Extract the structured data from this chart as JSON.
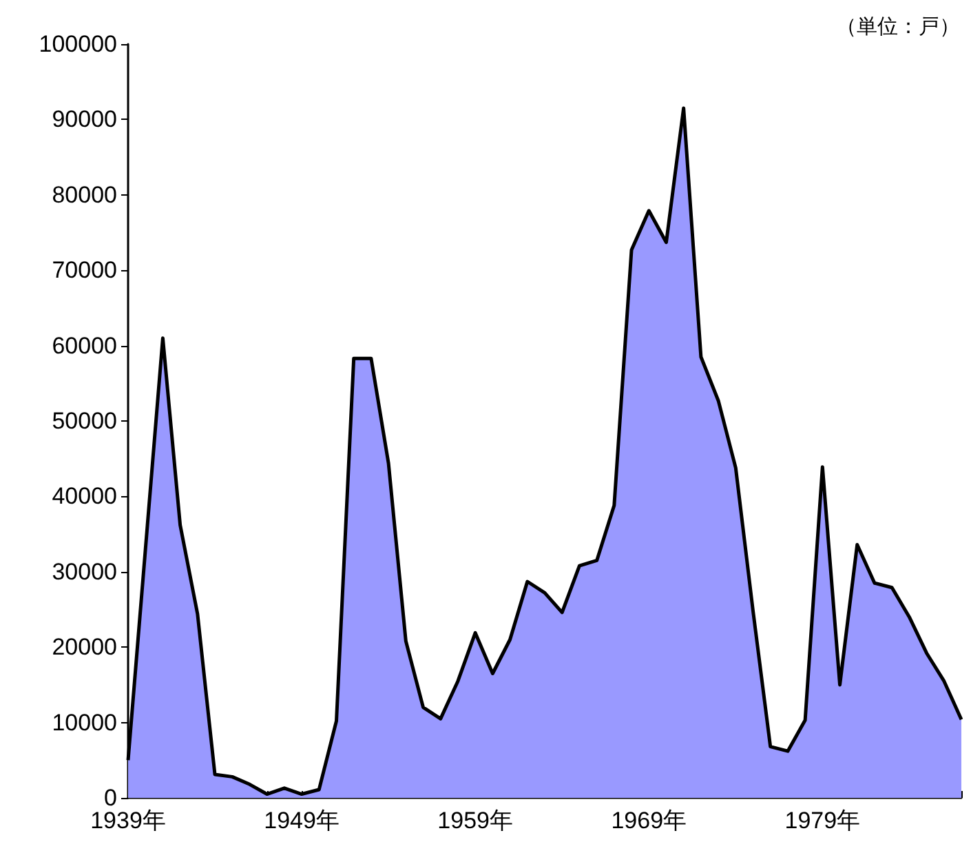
{
  "chart_data": {
    "type": "area",
    "annotations": [
      "（単位：戸）"
    ],
    "x": [
      1939,
      1940,
      1941,
      1942,
      1943,
      1944,
      1945,
      1946,
      1947,
      1948,
      1949,
      1950,
      1951,
      1952,
      1953,
      1954,
      1955,
      1956,
      1957,
      1958,
      1959,
      1960,
      1961,
      1962,
      1963,
      1964,
      1965,
      1966,
      1967,
      1968,
      1969,
      1970,
      1971,
      1972,
      1973,
      1974,
      1975,
      1976,
      1977,
      1978,
      1979,
      1980,
      1981,
      1982,
      1983,
      1984,
      1985,
      1986,
      1987
    ],
    "series": [
      {
        "color": "#9999ff",
        "values": [
          5000,
          33000,
          61000,
          36200,
          24400,
          3100,
          2800,
          1800,
          500,
          1300,
          500,
          1100,
          10200,
          58300,
          58300,
          44400,
          20800,
          12000,
          10500,
          15500,
          21900,
          16500,
          21000,
          28700,
          27200,
          24600,
          30800,
          31500,
          38800,
          72700,
          77900,
          73700,
          91500,
          58500,
          52700,
          43800,
          24800,
          6800,
          6200,
          10300,
          43900,
          15000,
          33600,
          28500,
          27900,
          24000,
          19200,
          15500,
          10400
        ]
      }
    ],
    "xlim": [
      1939,
      1987
    ],
    "xticks": [
      {
        "value": 1939,
        "label": "1939年"
      },
      {
        "value": 1940,
        "label": null
      },
      {
        "value": 1941,
        "label": null
      },
      {
        "value": 1942,
        "label": null
      },
      {
        "value": 1943,
        "label": null
      },
      {
        "value": 1944,
        "label": null
      },
      {
        "value": 1945,
        "label": null
      },
      {
        "value": 1946,
        "label": null
      },
      {
        "value": 1947,
        "label": null
      },
      {
        "value": 1948,
        "label": null
      },
      {
        "value": 1949,
        "label": "1949年"
      },
      {
        "value": 1950,
        "label": null
      },
      {
        "value": 1951,
        "label": null
      },
      {
        "value": 1952,
        "label": null
      },
      {
        "value": 1953,
        "label": null
      },
      {
        "value": 1954,
        "label": null
      },
      {
        "value": 1955,
        "label": null
      },
      {
        "value": 1956,
        "label": null
      },
      {
        "value": 1957,
        "label": null
      },
      {
        "value": 1958,
        "label": null
      },
      {
        "value": 1959,
        "label": "1959年"
      },
      {
        "value": 1960,
        "label": null
      },
      {
        "value": 1961,
        "label": null
      },
      {
        "value": 1962,
        "label": null
      },
      {
        "value": 1963,
        "label": null
      },
      {
        "value": 1964,
        "label": null
      },
      {
        "value": 1965,
        "label": null
      },
      {
        "value": 1966,
        "label": null
      },
      {
        "value": 1967,
        "label": null
      },
      {
        "value": 1968,
        "label": null
      },
      {
        "value": 1969,
        "label": "1969年"
      },
      {
        "value": 1970,
        "label": null
      },
      {
        "value": 1971,
        "label": null
      },
      {
        "value": 1972,
        "label": null
      },
      {
        "value": 1973,
        "label": null
      },
      {
        "value": 1974,
        "label": null
      },
      {
        "value": 1975,
        "label": null
      },
      {
        "value": 1976,
        "label": null
      },
      {
        "value": 1977,
        "label": null
      },
      {
        "value": 1978,
        "label": null
      },
      {
        "value": 1979,
        "label": "1979年"
      },
      {
        "value": 1980,
        "label": null
      },
      {
        "value": 1981,
        "label": null
      },
      {
        "value": 1982,
        "label": null
      },
      {
        "value": 1983,
        "label": null
      },
      {
        "value": 1984,
        "label": null
      },
      {
        "value": 1985,
        "label": null
      },
      {
        "value": 1986,
        "label": null
      },
      {
        "value": 1987,
        "label": null
      }
    ],
    "ylim": [
      0,
      100000
    ],
    "yticks": [
      0,
      10000,
      20000,
      30000,
      40000,
      50000,
      60000,
      70000,
      80000,
      90000,
      100000
    ],
    "marker": "none",
    "line_style": "solid"
  }
}
